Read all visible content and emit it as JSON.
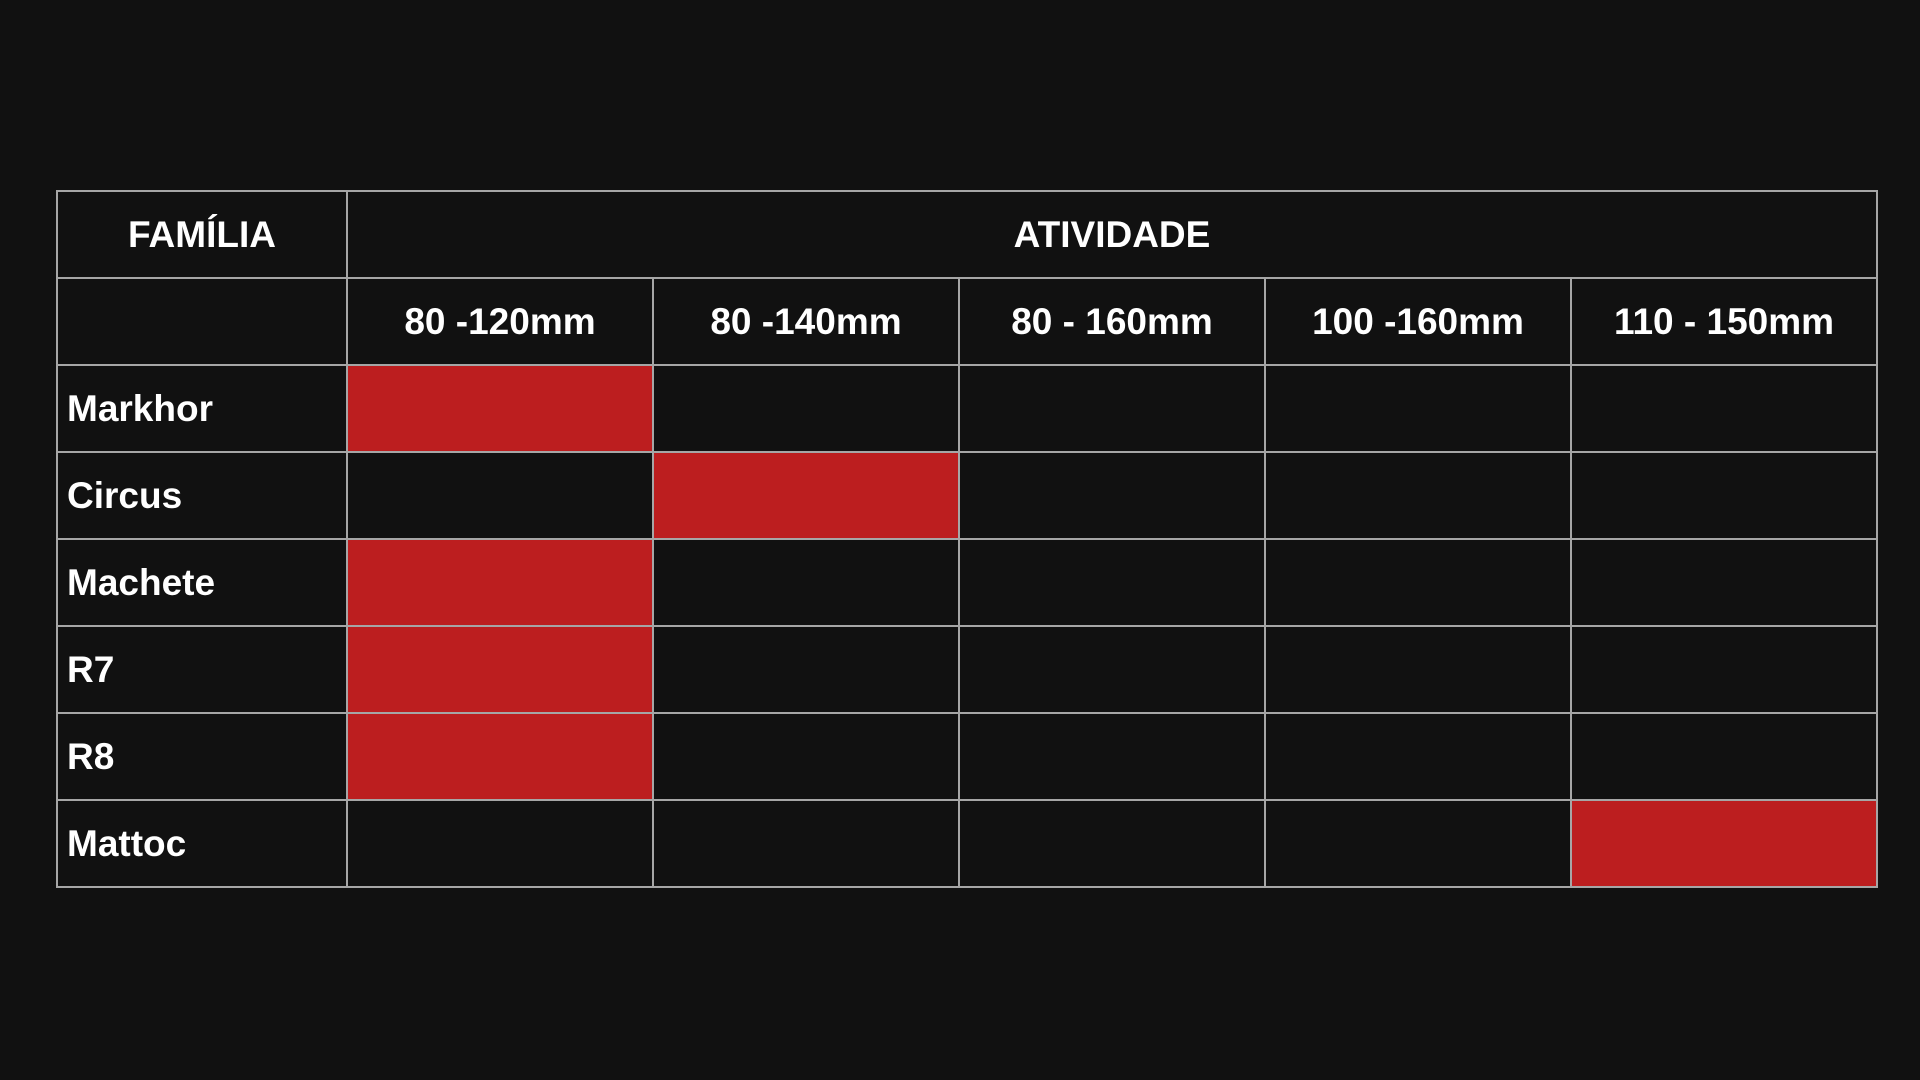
{
  "table": {
    "family_header": "FAMÍLIA",
    "activity_header": "ATIVIDADE",
    "columns": [
      "80 -120mm",
      "80 -140mm",
      "80 - 160mm",
      "100 -160mm",
      "110 - 150mm"
    ],
    "highlight_color": "#bc1e1f",
    "rows": [
      {
        "name": "Markhor",
        "marks": [
          true,
          false,
          false,
          false,
          false
        ]
      },
      {
        "name": "Circus",
        "marks": [
          false,
          true,
          false,
          false,
          false
        ]
      },
      {
        "name": "Machete",
        "marks": [
          true,
          false,
          false,
          false,
          false
        ]
      },
      {
        "name": "R7",
        "marks": [
          true,
          false,
          false,
          false,
          false
        ]
      },
      {
        "name": "R8",
        "marks": [
          true,
          false,
          false,
          false,
          false
        ]
      },
      {
        "name": "Mattoc",
        "marks": [
          false,
          false,
          false,
          false,
          true
        ]
      }
    ]
  }
}
